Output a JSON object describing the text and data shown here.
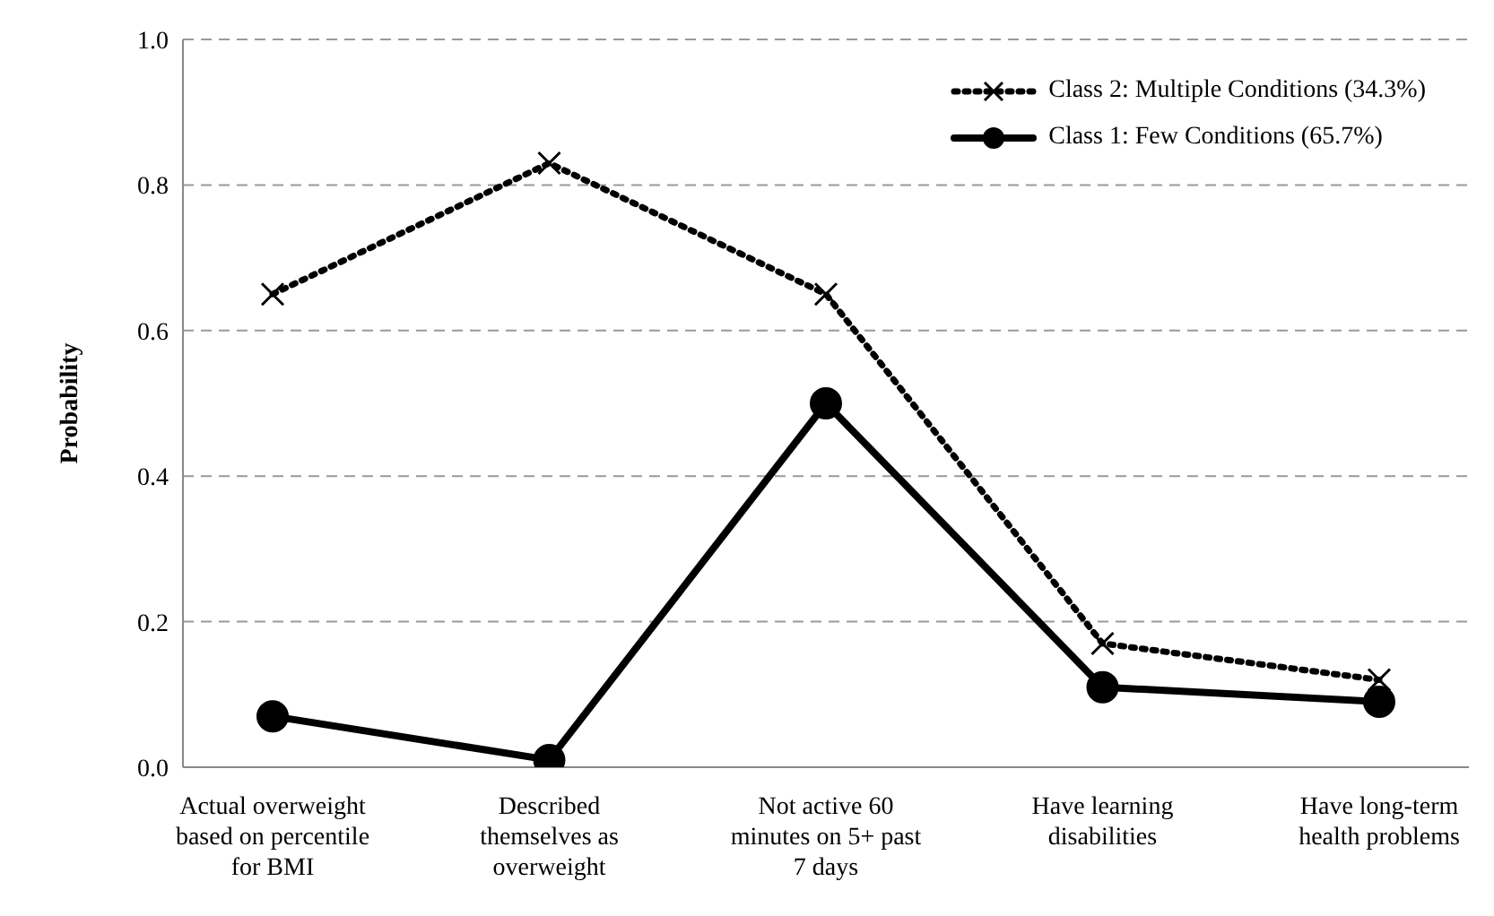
{
  "chart_data": {
    "type": "line",
    "ylabel": "Probability",
    "categories": [
      "Actual overweight based on percentile for BMI",
      "Described themselves as overweight",
      "Not active 60 minutes on 5+ past 7 days",
      "Have learning disabilities",
      "Have long-term health problems"
    ],
    "series": [
      {
        "name": "Class 2: Multiple Conditions (34.3%)",
        "color": "#000000",
        "line_style": "dotted",
        "marker": "cross",
        "values": [
          0.65,
          0.83,
          0.65,
          0.17,
          0.12
        ]
      },
      {
        "name": "Class 1: Few Conditions (65.7%)",
        "color": "#000000",
        "line_style": "solid",
        "marker": "circle",
        "values": [
          0.07,
          0.01,
          0.5,
          0.11,
          0.09
        ]
      }
    ],
    "ylim": [
      0,
      1
    ],
    "yticks": [
      {
        "value": 0,
        "label": "0.0"
      },
      {
        "value": 0.2,
        "label": "0.2"
      },
      {
        "value": 0.4,
        "label": "0.4"
      },
      {
        "value": 0.6,
        "label": "0.6"
      },
      {
        "value": 0.8,
        "label": "0.8"
      },
      {
        "value": 1,
        "label": "1.0"
      }
    ],
    "grid": "y",
    "legend": "top right"
  }
}
